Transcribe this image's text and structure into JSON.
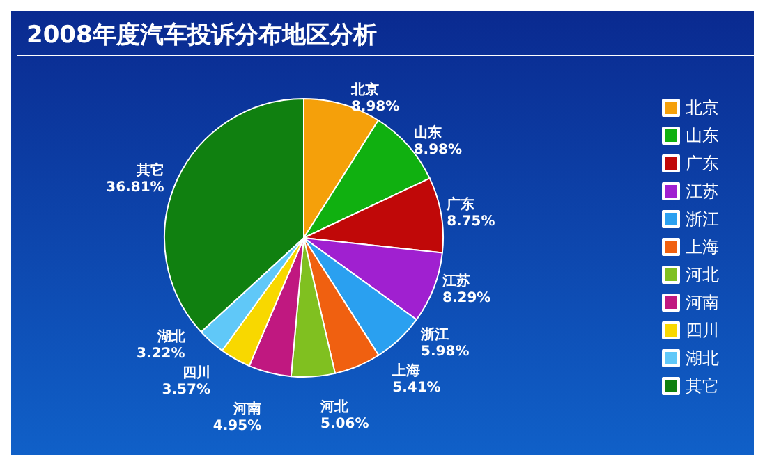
{
  "chart_data": {
    "type": "pie",
    "title": "2008年度汽车投诉分布地区分析",
    "categories": [
      "北京",
      "山东",
      "广东",
      "江苏",
      "浙江",
      "上海",
      "河北",
      "河南",
      "四川",
      "湖北",
      "其它"
    ],
    "values": [
      8.98,
      8.98,
      8.75,
      8.29,
      5.98,
      5.41,
      5.06,
      4.95,
      3.57,
      3.22,
      36.81
    ],
    "value_labels": [
      "8.98%",
      "8.98%",
      "8.75%",
      "8.29%",
      "5.98%",
      "5.41%",
      "5.06%",
      "4.95%",
      "3.57%",
      "3.22%",
      "36.81%"
    ],
    "colors": [
      "#f5a00a",
      "#10b010",
      "#c00808",
      "#a020d0",
      "#2aa0f0",
      "#f06010",
      "#80c020",
      "#c01880",
      "#f8d800",
      "#60c8f8",
      "#108010"
    ],
    "legend": "right"
  }
}
